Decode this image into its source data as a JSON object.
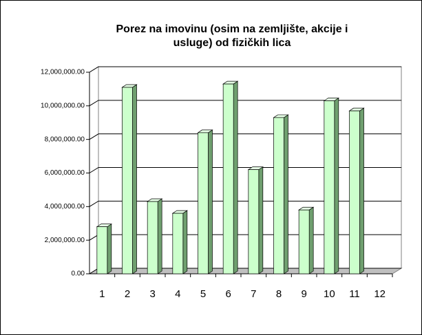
{
  "chart_data": {
    "type": "bar",
    "title": "Porez na imovinu (osim na zemljište, akcije i usluge) od fizičkih lica",
    "categories": [
      "1",
      "2",
      "3",
      "4",
      "5",
      "6",
      "7",
      "8",
      "9",
      "10",
      "11",
      "12"
    ],
    "values": [
      2800000,
      11100000,
      4300000,
      3600000,
      8400000,
      11300000,
      6200000,
      9300000,
      3800000,
      10300000,
      9700000,
      null
    ],
    "color": "#ccffcc",
    "ylim": [
      0,
      12000000
    ],
    "yticks": [
      {
        "value": 0,
        "label": "0.00"
      },
      {
        "value": 2000000,
        "label": "2,000,000.00"
      },
      {
        "value": 4000000,
        "label": "4,000,000.00"
      },
      {
        "value": 6000000,
        "label": "6,000,000.00"
      },
      {
        "value": 8000000,
        "label": "8,000,000.00"
      },
      {
        "value": 10000000,
        "label": "10,000,000.00"
      },
      {
        "value": 12000000,
        "label": "12,000,000.00"
      }
    ],
    "grid": true
  }
}
